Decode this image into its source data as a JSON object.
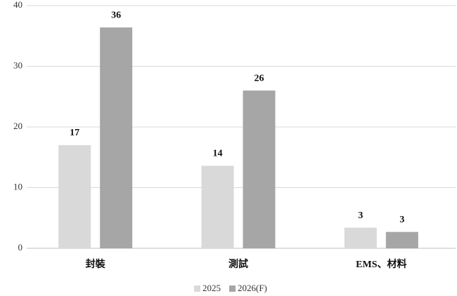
{
  "chart_data": {
    "type": "bar",
    "categories": [
      "封裝",
      "測試",
      "EMS、材料"
    ],
    "series": [
      {
        "name": "2025",
        "color": "#d9d9d9",
        "values": [
          17,
          13.6,
          3.4
        ],
        "value_labels": [
          "17",
          "14",
          "3"
        ]
      },
      {
        "name": "2026(F)",
        "color": "#a6a6a6",
        "values": [
          36.4,
          26,
          2.7
        ],
        "value_labels": [
          "36",
          "26",
          "3"
        ]
      }
    ],
    "ylim": [
      0,
      40
    ],
    "yticks": [
      0,
      10,
      20,
      30,
      40
    ],
    "grid": true,
    "legend": "bottom"
  }
}
